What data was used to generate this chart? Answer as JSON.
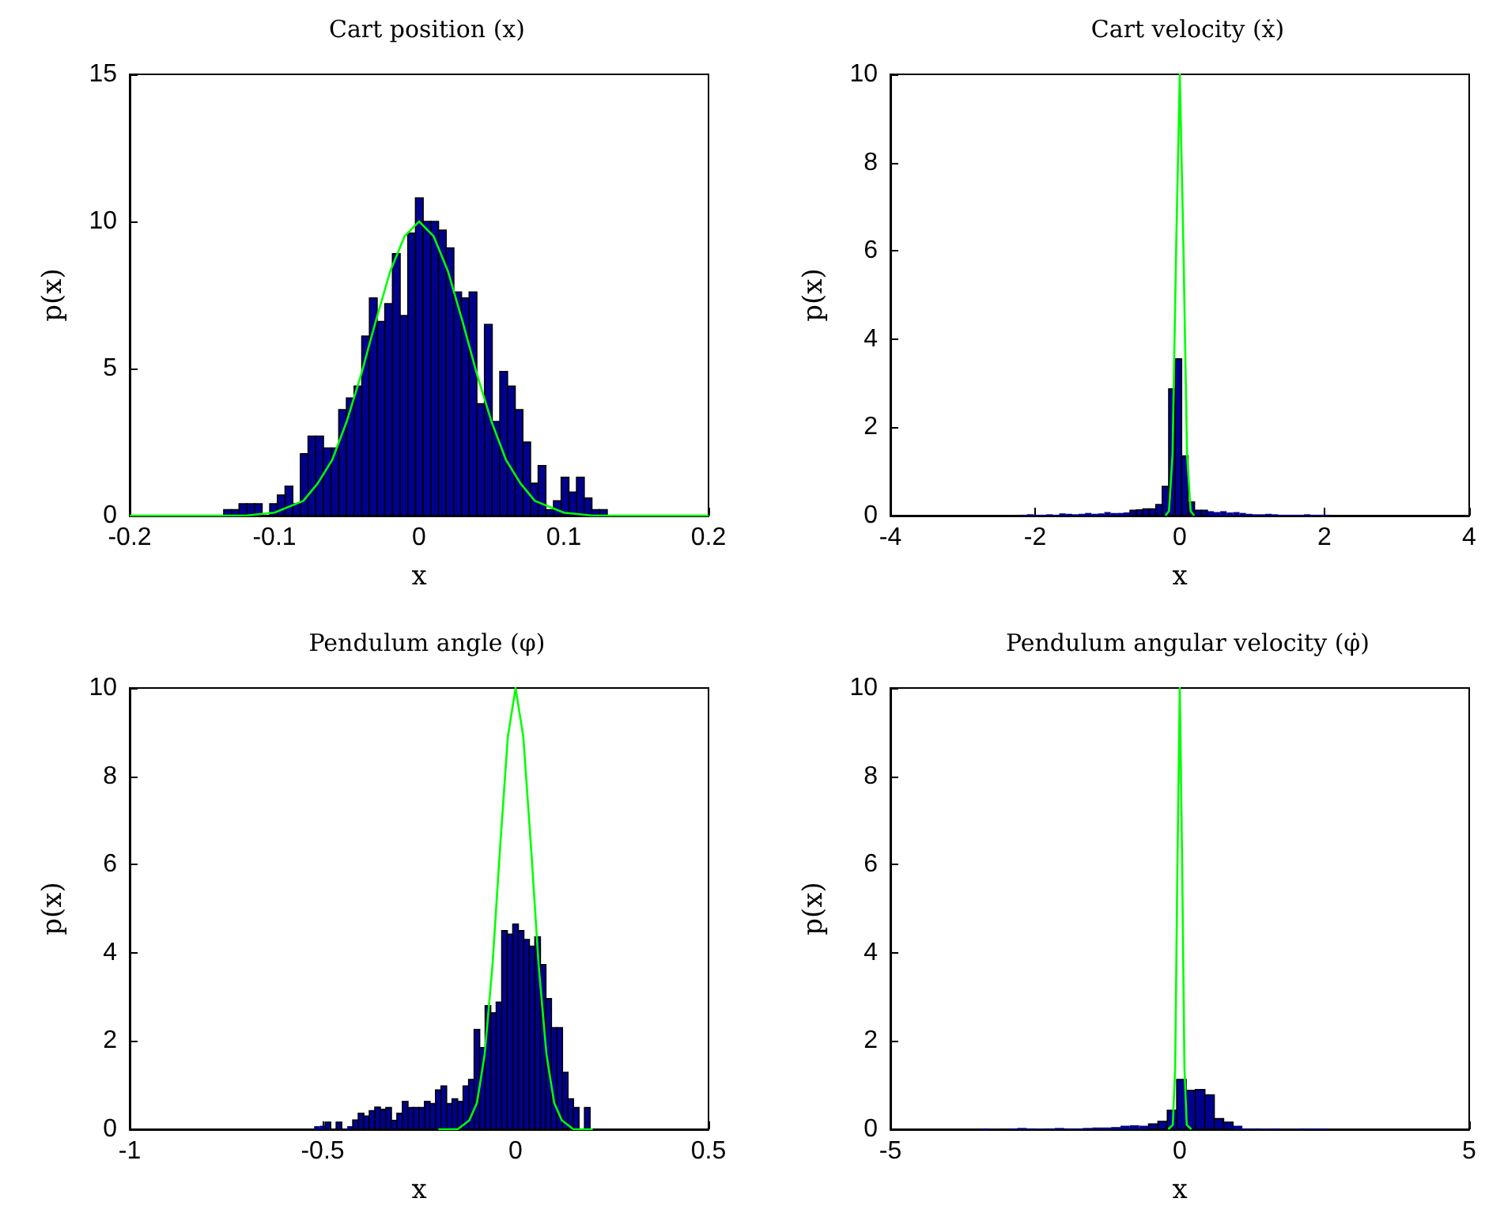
{
  "chart_data": [
    {
      "type": "histogram",
      "title": "Cart position (x)",
      "xlabel": "x",
      "ylabel": "p(x)",
      "xlim": [
        -0.2,
        0.2
      ],
      "xticks": [
        -0.2,
        -0.1,
        0,
        0.1,
        0.2
      ],
      "ylim": [
        0,
        15
      ],
      "yticks": [
        0,
        5,
        10,
        15
      ],
      "series": [
        {
          "color": "#00008f",
          "bins": [
            -0.135,
            -0.1297,
            -0.1244,
            -0.1191,
            -0.1138,
            -0.1085,
            -0.1032,
            -0.0979,
            -0.0926,
            -0.0873,
            -0.082,
            -0.0767,
            -0.0714,
            -0.0661,
            -0.0608,
            -0.0555,
            -0.0502,
            -0.0449,
            -0.0396,
            -0.0343,
            -0.029,
            -0.0237,
            -0.0184,
            -0.0131,
            -0.0078,
            -0.0025,
            0.0028,
            0.0081,
            0.0134,
            0.0187,
            0.024,
            0.0293,
            0.0346,
            0.0399,
            0.0452,
            0.0505,
            0.0558,
            0.0611,
            0.0664,
            0.0717,
            0.077,
            0.0823,
            0.0876,
            0.0929,
            0.0982,
            0.1035,
            0.1088,
            0.1141,
            0.1194,
            0.1247,
            0.13
          ],
          "values": [
            0.2,
            0.2,
            0.4,
            0.4,
            0.4,
            0,
            0.4,
            0.7,
            1,
            0.4,
            2.1,
            2.7,
            2.7,
            2.3,
            2.3,
            3.6,
            4,
            4.4,
            6.1,
            7.4,
            6.6,
            7.2,
            8.9,
            6.8,
            9.6,
            10.8,
            10,
            10,
            9.7,
            9.1,
            7.6,
            7.4,
            7.6,
            3.8,
            6.5,
            3.2,
            4.9,
            4.4,
            3.6,
            2.5,
            1.1,
            1.7,
            0.2,
            0.5,
            1.3,
            0.8,
            1.3,
            0.6,
            0.2,
            0.2
          ]
        },
        {
          "type": "line",
          "color": "#00ff00",
          "x": [
            -0.2,
            -0.12,
            -0.1,
            -0.08,
            -0.07,
            -0.06,
            -0.05,
            -0.04,
            -0.03,
            -0.02,
            -0.01,
            0,
            0.01,
            0.02,
            0.03,
            0.04,
            0.05,
            0.06,
            0.07,
            0.08,
            0.1,
            0.12,
            0.2
          ],
          "values": [
            0,
            0,
            0.1,
            0.5,
            1.1,
            1.9,
            3.2,
            4.8,
            6.6,
            8.3,
            9.5,
            10,
            9.5,
            8.3,
            6.6,
            4.8,
            3.2,
            1.9,
            1.1,
            0.5,
            0.1,
            0,
            0
          ]
        }
      ]
    },
    {
      "type": "histogram",
      "title": "Cart velocity (ẋ)",
      "xlabel": "x",
      "ylabel": "p(x)",
      "xlim": [
        -4,
        4
      ],
      "xticks": [
        -4,
        -2,
        0,
        2,
        4
      ],
      "ylim": [
        0,
        10
      ],
      "yticks": [
        0,
        2,
        4,
        6,
        8,
        10
      ],
      "series": [
        {
          "color": "#00008f",
          "bins": [
            -2.2,
            -2.111,
            -2.022,
            -1.933,
            -1.844,
            -1.755,
            -1.666,
            -1.577,
            -1.488,
            -1.399,
            -1.31,
            -1.221,
            -1.132,
            -1.043,
            -0.954,
            -0.865,
            -0.776,
            -0.687,
            -0.598,
            -0.509,
            -0.42,
            -0.331,
            -0.242,
            -0.153,
            -0.064,
            0.025,
            0.114,
            0.203,
            0.292,
            0.381,
            0.47,
            0.559,
            0.648,
            0.737,
            0.826,
            0.915,
            1.004,
            1.093,
            1.182,
            1.271,
            1.36,
            1.449,
            1.538,
            1.627,
            1.716,
            1.805,
            1.894,
            1.983,
            2.072
          ],
          "values": [
            0.02,
            0.03,
            0.02,
            0.02,
            0.03,
            0.02,
            0.05,
            0.04,
            0.03,
            0.04,
            0.06,
            0.04,
            0.05,
            0.08,
            0.06,
            0.06,
            0.07,
            0.12,
            0.13,
            0.15,
            0.15,
            0.25,
            0.66,
            2.87,
            3.55,
            1.35,
            0.31,
            0.12,
            0.12,
            0.1,
            0.08,
            0.1,
            0.07,
            0.08,
            0.06,
            0.04,
            0.03,
            0.03,
            0.04,
            0.03,
            0.02,
            0.02,
            0.02,
            0.02,
            0.03,
            0.02,
            0.02,
            0.02
          ]
        },
        {
          "type": "line",
          "color": "#00ff00",
          "x": [
            -0.2,
            -0.15,
            -0.1,
            -0.05,
            0,
            0.05,
            0.1,
            0.15,
            0.2
          ],
          "values": [
            0,
            0.1,
            1.4,
            6.1,
            10,
            6.1,
            1.4,
            0.1,
            0
          ]
        }
      ]
    },
    {
      "type": "histogram",
      "title": "Pendulum angle (φ)",
      "xlabel": "x",
      "ylabel": "p(x)",
      "xlim": [
        -1,
        0.5
      ],
      "xticks": [
        -1,
        -0.5,
        0,
        0.5
      ],
      "ylim": [
        0,
        10
      ],
      "yticks": [
        0,
        2,
        4,
        6,
        8,
        10
      ],
      "series": [
        {
          "color": "#00008f",
          "bins": [
            -0.522,
            -0.5077,
            -0.4934,
            -0.4791,
            -0.4648,
            -0.4505,
            -0.4362,
            -0.4219,
            -0.4076,
            -0.3933,
            -0.379,
            -0.3647,
            -0.3504,
            -0.3361,
            -0.3218,
            -0.3075,
            -0.2932,
            -0.2789,
            -0.2646,
            -0.2503,
            -0.236,
            -0.2217,
            -0.2074,
            -0.1931,
            -0.1788,
            -0.1645,
            -0.1502,
            -0.1359,
            -0.1216,
            -0.1073,
            -0.093,
            -0.0787,
            -0.0644,
            -0.0501,
            -0.0358,
            -0.0215,
            -0.0072,
            0.0071,
            0.0214,
            0.0357,
            0.05,
            0.0643,
            0.0786,
            0.0929,
            0.1072,
            0.1215,
            0.1358,
            0.1501,
            0.1644,
            0.1787,
            0.193
          ],
          "values": [
            0.07,
            0.08,
            0.16,
            0,
            0.16,
            0,
            0.07,
            0.21,
            0.36,
            0.3,
            0.42,
            0.5,
            0.45,
            0.49,
            0.2,
            0.36,
            0.63,
            0.49,
            0.49,
            0.49,
            0.63,
            0.58,
            0.89,
            0.98,
            0.58,
            0.69,
            0.63,
            0.98,
            1.13,
            2.26,
            1.85,
            2.8,
            2.64,
            2.88,
            4.5,
            4.42,
            4.65,
            4.5,
            4.3,
            4.15,
            4.36,
            3.73,
            2.96,
            2.3,
            2.3,
            1.29,
            0.69,
            0.49,
            0,
            0.49
          ]
        },
        {
          "type": "line",
          "color": "#00ff00",
          "x": [
            -0.2,
            -0.15,
            -0.12,
            -0.1,
            -0.08,
            -0.06,
            -0.04,
            -0.02,
            0,
            0.02,
            0.04,
            0.06,
            0.08,
            0.1,
            0.12,
            0.15,
            0.2
          ],
          "values": [
            0,
            0,
            0.2,
            0.6,
            1.7,
            3.7,
            6.4,
            8.9,
            10,
            8.9,
            6.4,
            3.7,
            1.7,
            0.6,
            0.2,
            0,
            0
          ]
        }
      ]
    },
    {
      "type": "histogram",
      "title": "Pendulum angular velocity (φ̇)",
      "xlabel": "x",
      "ylabel": "p(x)",
      "xlim": [
        -5,
        5
      ],
      "xticks": [
        -5,
        0,
        5
      ],
      "ylim": [
        0,
        10
      ],
      "yticks": [
        0,
        2,
        4,
        6,
        8,
        10
      ],
      "series": [
        {
          "color": "#00008f",
          "bins": [
            -3.455,
            -3.293,
            -3.131,
            -2.969,
            -2.807,
            -2.645,
            -2.483,
            -2.321,
            -2.159,
            -1.997,
            -1.835,
            -1.673,
            -1.511,
            -1.349,
            -1.187,
            -1.025,
            -0.863,
            -0.701,
            -0.539,
            -0.377,
            -0.215,
            -0.053,
            0.109,
            0.271,
            0.433,
            0.595,
            0.757,
            0.919,
            1.081,
            1.243,
            1.405,
            1.567,
            1.729,
            1.891,
            2.053,
            2.215,
            2.377,
            2.539
          ],
          "values": [
            0.02,
            0.01,
            0,
            0.02,
            0.03,
            0.02,
            0.01,
            0.02,
            0.03,
            0.02,
            0.02,
            0.03,
            0.04,
            0.04,
            0.05,
            0.08,
            0.09,
            0.08,
            0.12,
            0.18,
            0.43,
            1.13,
            0.88,
            0.9,
            0.78,
            0.24,
            0.16,
            0.08,
            0.02,
            0.02,
            0.01,
            0.02,
            0.01,
            0.01,
            0.02,
            0.02,
            0.02
          ]
        },
        {
          "type": "line",
          "color": "#00ff00",
          "x": [
            -0.2,
            -0.12,
            -0.08,
            -0.04,
            0,
            0.04,
            0.08,
            0.12,
            0.2
          ],
          "values": [
            0,
            0.1,
            1.4,
            6.1,
            10,
            6.1,
            1.4,
            0.1,
            0
          ]
        }
      ]
    }
  ]
}
